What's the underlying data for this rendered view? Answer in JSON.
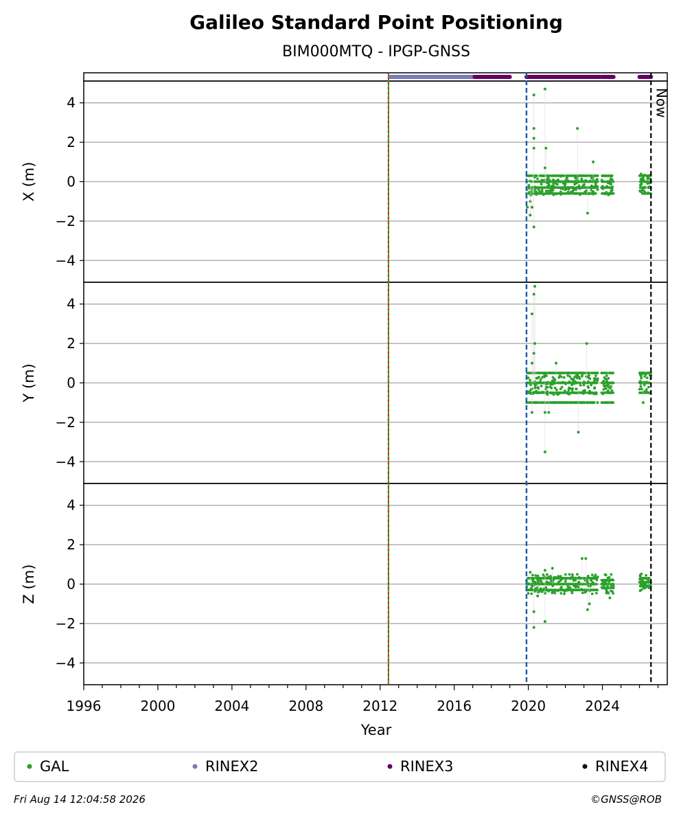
{
  "title": "Galileo Standard Point Positioning",
  "subtitle": "BIM000MTQ - IPGP-GNSS",
  "now_label": "Now",
  "footer": {
    "timestamp": "Fri Aug 14 12:04:58 2026",
    "credit": "©GNSS@ROB"
  },
  "colors": {
    "gal": "#2ca02c",
    "rinex2": "#7a7ab8",
    "rinex3": "#660066",
    "rinex4": "#1a0a1a",
    "event_line_green": "#2ca02c",
    "event_line_red": "#e41a1c",
    "event_line_blue": "#1f5fa8",
    "now_line": "#000000"
  },
  "legend": [
    {
      "label": "GAL",
      "color_key": "gal"
    },
    {
      "label": "RINEX2",
      "color_key": "rinex2"
    },
    {
      "label": "RINEX3",
      "color_key": "rinex3"
    },
    {
      "label": "RINEX4",
      "color_key": "rinex4"
    }
  ],
  "chart_data": {
    "type": "scatter",
    "xlabel": "Year",
    "xlim": [
      1996,
      2027.5
    ],
    "x_ticks": [
      1996,
      2000,
      2004,
      2008,
      2012,
      2016,
      2020,
      2024
    ],
    "y_ticks": [
      4,
      2,
      0,
      -2,
      -4
    ],
    "grid": true,
    "legend_position": "bottom",
    "event_lines": [
      {
        "x": 2012.45,
        "style": "green-red-dashed"
      },
      {
        "x": 2019.9,
        "style": "blue-dashed"
      },
      {
        "x": 2026.62,
        "style": "black-dashed",
        "label": "Now"
      }
    ],
    "data_availability": [
      {
        "series": "RINEX2",
        "start": 2012.55,
        "end": 2017.1
      },
      {
        "series": "RINEX3",
        "start": 2017.1,
        "end": 2019.0
      },
      {
        "series": "RINEX3",
        "start": 2019.9,
        "end": 2021.6
      },
      {
        "series": "RINEX3",
        "start": 2021.6,
        "end": 2023.9
      },
      {
        "series": "RINEX3",
        "start": 2024.0,
        "end": 2024.6
      },
      {
        "series": "RINEX3",
        "start": 2026.0,
        "end": 2026.62
      }
    ],
    "panels": [
      {
        "ylabel": "X (m)",
        "ylim": [
          -5,
          5
        ],
        "series_name": "GAL",
        "segments": [
          {
            "start": 2019.9,
            "end": 2023.75,
            "center": -0.2,
            "levels": [
              -0.6,
              -0.3,
              0.0,
              0.3
            ]
          },
          {
            "start": 2023.95,
            "end": 2024.6,
            "center": -0.2,
            "levels": [
              -0.6,
              -0.3,
              0.0,
              0.3
            ]
          },
          {
            "start": 2026.0,
            "end": 2026.62,
            "center": -0.1,
            "levels": [
              -0.6,
              -0.3,
              0.0,
              0.3
            ]
          }
        ],
        "outliers": [
          [
            2020.3,
            4.4
          ],
          [
            2020.9,
            4.7
          ],
          [
            2020.3,
            2.7
          ],
          [
            2020.3,
            2.2
          ],
          [
            2020.3,
            1.7
          ],
          [
            2020.95,
            1.7
          ],
          [
            2022.65,
            2.7
          ],
          [
            2020.9,
            0.7
          ],
          [
            2023.5,
            1.0
          ],
          [
            2020.1,
            -1.0
          ],
          [
            2020.2,
            -1.3
          ],
          [
            2020.1,
            -1.7
          ],
          [
            2020.3,
            -2.3
          ],
          [
            2023.2,
            -1.6
          ],
          [
            2019.95,
            -1.3
          ]
        ]
      },
      {
        "ylabel": "Y (m)",
        "ylim": [
          -5,
          5
        ],
        "series_name": "GAL",
        "segments": [
          {
            "start": 2019.9,
            "end": 2023.75,
            "center": -0.1,
            "levels": [
              -1.0,
              -0.5,
              0.0,
              0.5
            ]
          },
          {
            "start": 2023.95,
            "end": 2024.6,
            "center": -0.1,
            "levels": [
              -1.0,
              -0.5,
              0.0,
              0.5
            ]
          },
          {
            "start": 2026.0,
            "end": 2026.62,
            "center": 0.0,
            "levels": [
              -0.5,
              0.0,
              0.5
            ]
          }
        ],
        "outliers": [
          [
            2020.35,
            4.9
          ],
          [
            2020.3,
            4.5
          ],
          [
            2020.2,
            3.5
          ],
          [
            2020.35,
            2.0
          ],
          [
            2020.3,
            1.5
          ],
          [
            2020.2,
            1.0
          ],
          [
            2021.5,
            1.0
          ],
          [
            2023.15,
            2.0
          ],
          [
            2022.7,
            -2.5
          ],
          [
            2020.9,
            -3.5
          ],
          [
            2020.2,
            -1.5
          ],
          [
            2020.9,
            -1.5
          ],
          [
            2021.1,
            -1.5
          ],
          [
            2026.2,
            -1.0
          ]
        ]
      },
      {
        "ylabel": "Z (m)",
        "ylim": [
          -5,
          5
        ],
        "series_name": "GAL",
        "segments": [
          {
            "start": 2019.9,
            "end": 2023.75,
            "center": 0.0,
            "levels": [
              -0.3,
              0.0,
              0.3
            ]
          },
          {
            "start": 2023.95,
            "end": 2024.6,
            "center": 0.0,
            "levels": [
              -0.2,
              0.0,
              0.2
            ]
          },
          {
            "start": 2026.0,
            "end": 2026.62,
            "center": 0.1,
            "levels": [
              -0.1,
              0.1,
              0.3
            ]
          }
        ],
        "outliers": [
          [
            2020.3,
            -2.2
          ],
          [
            2020.9,
            -1.9
          ],
          [
            2020.3,
            -1.4
          ],
          [
            2022.9,
            1.3
          ],
          [
            2023.1,
            1.3
          ],
          [
            2023.2,
            -1.3
          ],
          [
            2020.1,
            0.6
          ],
          [
            2020.9,
            0.7
          ],
          [
            2021.3,
            0.8
          ],
          [
            2024.4,
            -0.7
          ],
          [
            2020.5,
            -0.6
          ],
          [
            2023.3,
            -1.0
          ]
        ]
      }
    ]
  }
}
